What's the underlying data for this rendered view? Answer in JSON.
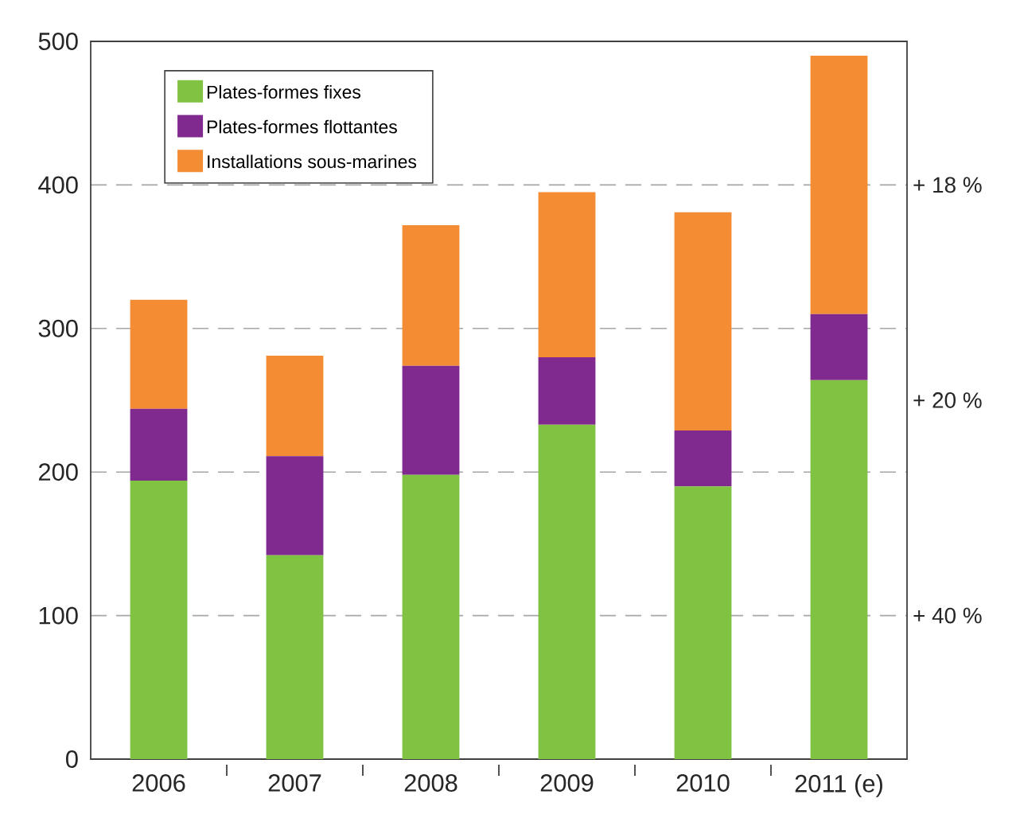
{
  "chart_data": {
    "type": "bar",
    "stacked": true,
    "categories": [
      "2006",
      "2007",
      "2008",
      "2009",
      "2010",
      "2011 (e)"
    ],
    "series": [
      {
        "name": "Plates-formes fixes",
        "color": "#80c242",
        "values": [
          194,
          142,
          198,
          233,
          190,
          264
        ]
      },
      {
        "name": "Plates-formes flottantes",
        "color": "#80298f",
        "values": [
          50,
          69,
          76,
          47,
          39,
          46
        ]
      },
      {
        "name": "Installations sous-marines",
        "color": "#f48c34",
        "values": [
          76,
          70,
          98,
          115,
          152,
          180
        ]
      }
    ],
    "ylim": [
      0,
      500
    ],
    "yticks": [
      0,
      100,
      200,
      300,
      400,
      500
    ],
    "grid": "y",
    "legend": "top left",
    "annotations": [
      "+ 18 %",
      "+ 20 %",
      "+ 40 %"
    ]
  }
}
